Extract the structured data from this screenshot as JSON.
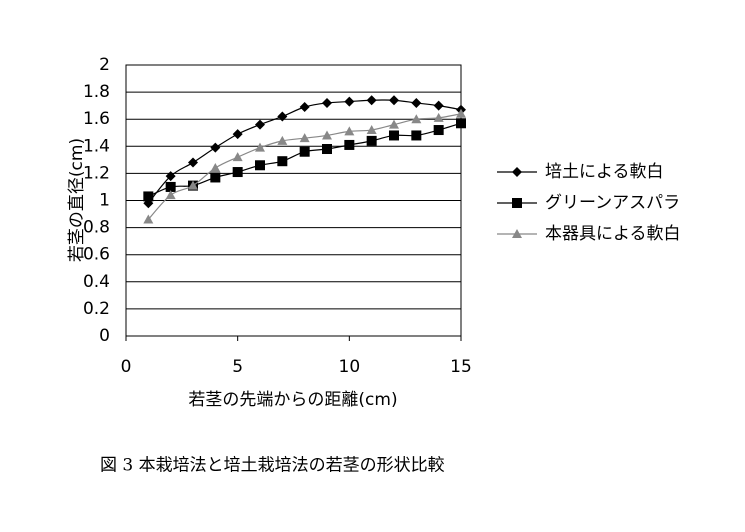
{
  "chart_data": {
    "type": "line",
    "caption": "図 3 本栽培法と培土栽培法の若茎の形状比較",
    "x_label": "若茎の先端からの距離(cm)",
    "y_label": "若茎の直径(cm)",
    "x": [
      1,
      2,
      3,
      4,
      5,
      6,
      7,
      8,
      9,
      10,
      11,
      12,
      13,
      14,
      15
    ],
    "series": [
      {
        "name": "培土による軟白",
        "color": "#000000",
        "marker": "diamond",
        "values": [
          0.98,
          1.18,
          1.28,
          1.39,
          1.49,
          1.56,
          1.62,
          1.69,
          1.72,
          1.73,
          1.74,
          1.74,
          1.72,
          1.7,
          1.67
        ]
      },
      {
        "name": "グリーンアスパラ",
        "color": "#000000",
        "marker": "square",
        "values": [
          1.03,
          1.1,
          1.11,
          1.17,
          1.21,
          1.26,
          1.29,
          1.36,
          1.38,
          1.41,
          1.44,
          1.48,
          1.48,
          1.52,
          1.57
        ]
      },
      {
        "name": "本器具による軟白",
        "color": "#888888",
        "marker": "triangle",
        "values": [
          0.86,
          1.04,
          1.11,
          1.24,
          1.32,
          1.39,
          1.44,
          1.46,
          1.48,
          1.51,
          1.52,
          1.56,
          1.6,
          1.61,
          1.64
        ]
      }
    ],
    "xlim": [
      0,
      15
    ],
    "xticks": [
      0,
      5,
      10,
      15
    ],
    "ylim": [
      0,
      2
    ],
    "yticks": [
      0,
      0.2,
      0.4,
      0.6,
      0.8,
      1,
      1.2,
      1.4,
      1.6,
      1.8,
      2
    ],
    "grid": true,
    "legend": "right"
  }
}
